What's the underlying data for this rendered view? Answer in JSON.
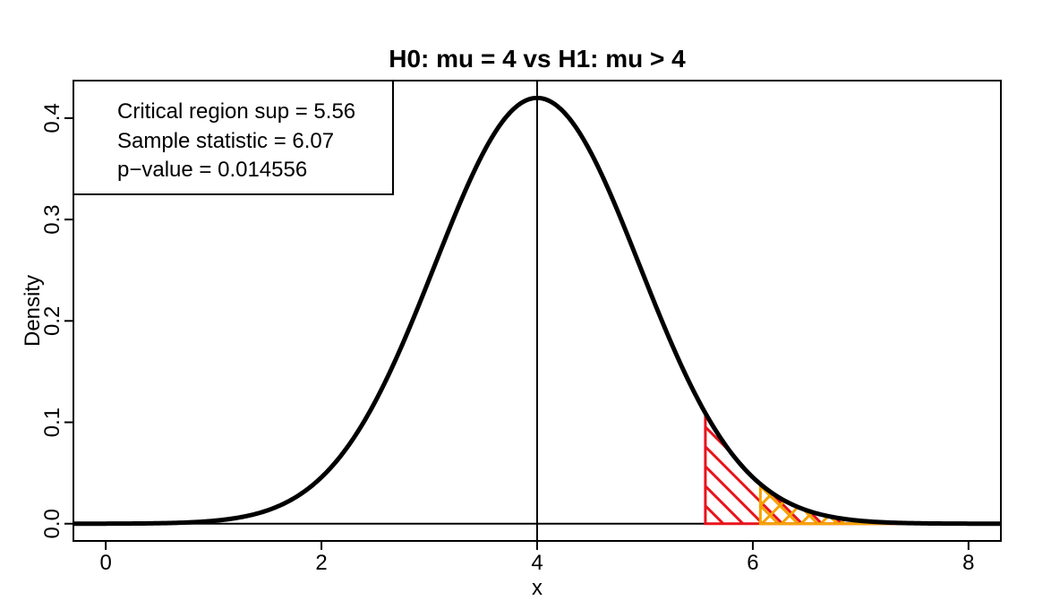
{
  "chart_data": {
    "type": "line",
    "title": "H0: mu =  4 vs H1: mu > 4",
    "xlabel": "x",
    "ylabel": "Density",
    "xlim": [
      -0.3,
      8.3
    ],
    "ylim": [
      -0.017,
      0.437
    ],
    "x_ticks": [
      0,
      2,
      4,
      6,
      8
    ],
    "y_ticks": [
      0.0,
      0.1,
      0.2,
      0.3,
      0.4
    ],
    "x_tick_labels": [
      "0",
      "2",
      "4",
      "6",
      "8"
    ],
    "y_tick_labels": [
      "0.0",
      "0.1",
      "0.2",
      "0.3",
      "0.4"
    ],
    "curve": {
      "distribution": "normal",
      "mean": 4,
      "sd": 0.95,
      "x_range": [
        -0.3,
        8.3
      ]
    },
    "reference_lines": {
      "vertical_x": 4,
      "horizontal_y": 0
    },
    "critical_region": {
      "from": 5.56,
      "to": 8.3,
      "color": "#e8141c",
      "hatch": "diagonal"
    },
    "p_value_region": {
      "from": 6.07,
      "to": 8.3,
      "color": "#f5a300",
      "hatch": "cross"
    },
    "legend": {
      "position": "top-left",
      "lines": [
        "Critical region sup = 5.56",
        "Sample statistic = 6.07",
        "p−value = 0.014556"
      ]
    },
    "colors": {
      "curve": "#000000",
      "critical": "#e8141c",
      "pvalue": "#f5a300"
    }
  }
}
